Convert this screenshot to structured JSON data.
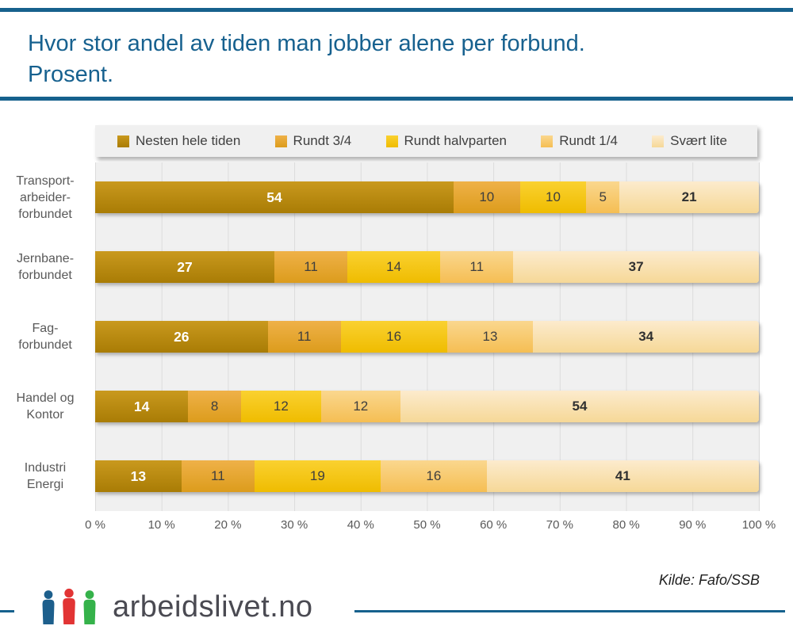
{
  "page": {
    "background": "#FFFFFF",
    "accent_blue": "#16618D"
  },
  "header": {
    "title": "Hvor stor andel av tiden man jobber alene per forbund.\nProsent.",
    "title_color": "#17618F"
  },
  "chart_data": {
    "type": "bar",
    "variant": "horizontal-stacked",
    "title": "Hvor stor andel av tiden man jobber alene per forbund. Prosent.",
    "categories": [
      "Transportarbeiderforbundet",
      "Jernbaneforbundet",
      "Fagforbundet",
      "Handel og Kontor",
      "Industri Energi"
    ],
    "category_label_lines": [
      [
        "Transport-",
        "arbeider-",
        "forbundet"
      ],
      [
        "Jernbane-",
        "forbundet"
      ],
      [
        "Fag-",
        "forbundet"
      ],
      [
        "Handel og",
        "Kontor"
      ],
      [
        "Industri",
        "Energi"
      ]
    ],
    "series": [
      {
        "name": "Nesten hele tiden",
        "color": "#BD8C10",
        "gradient": [
          "#C9991E",
          "#A97C05"
        ],
        "values": [
          54,
          27,
          26,
          14,
          13
        ]
      },
      {
        "name": "Rundt 3/4",
        "color": "#E7A62F",
        "gradient": [
          "#EFB148",
          "#DC9C1C"
        ],
        "values": [
          10,
          11,
          11,
          8,
          11
        ]
      },
      {
        "name": "Rundt halvparten",
        "color": "#F6C714",
        "gradient": [
          "#FAD130",
          "#EFBC00"
        ],
        "values": [
          10,
          14,
          16,
          12,
          19
        ]
      },
      {
        "name": "Rundt 1/4",
        "color": "#F8CB72",
        "gradient": [
          "#FAD78E",
          "#F5BE53"
        ],
        "values": [
          5,
          11,
          13,
          12,
          16
        ]
      },
      {
        "name": "Svært lite",
        "color": "#FAE3B9",
        "gradient": [
          "#FCEBCD",
          "#F6D897"
        ],
        "values": [
          21,
          37,
          34,
          54,
          41
        ]
      }
    ],
    "x_ticks": [
      "0 %",
      "10 %",
      "20 %",
      "30 %",
      "40 %",
      "50 %",
      "60 %",
      "70 %",
      "80 %",
      "90 %",
      "100 %"
    ],
    "xlim": [
      0,
      100
    ],
    "grid": true,
    "legend_position": "top",
    "plot_background": "#F0F0F0",
    "gridline_color": "#DCDCDC",
    "value_label_colors": {
      "first_series": "#FFFFFF",
      "middle_series": "#3E3E3E",
      "last_series": "#303030"
    }
  },
  "footer": {
    "source": "Kilde: Fafo/SSB",
    "logo_text": "arbeidslivet.no",
    "logo_icon": "three-people-icon",
    "logo_icon_colors": [
      "#1D5F8C",
      "#E23434",
      "#35B24A"
    ]
  }
}
